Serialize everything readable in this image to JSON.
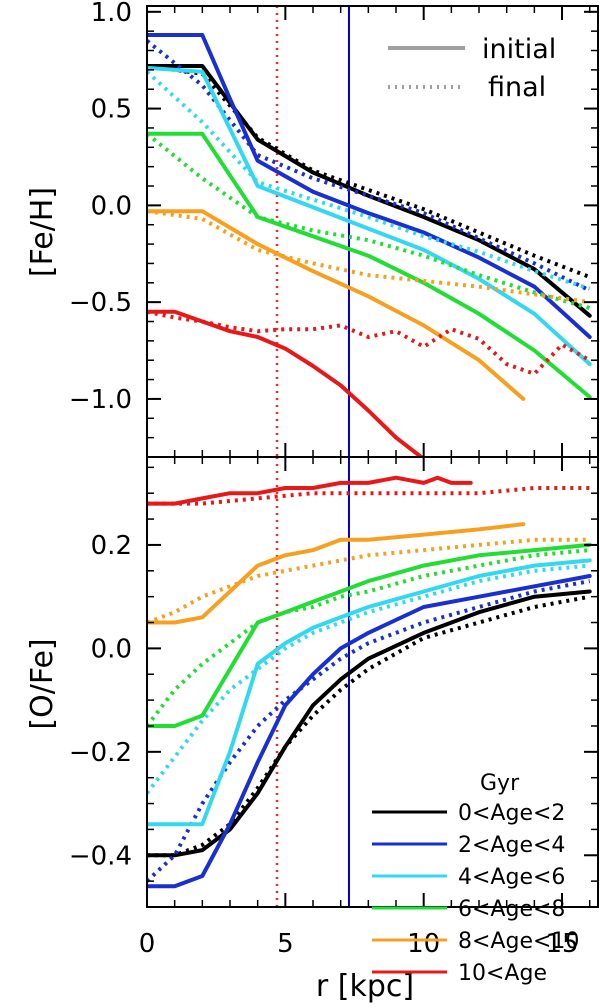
{
  "chart_data": [
    {
      "type": "line",
      "panel": "top",
      "ylabel": "[Fe/H]",
      "xlim": [
        0,
        16.3
      ],
      "ylim": [
        -1.3,
        1.03
      ],
      "yticks": [
        1.0,
        0.5,
        0.0,
        -0.5,
        -1.0
      ],
      "yticklabels": [
        "1.0",
        "0.5",
        "0.0",
        "−0.5",
        "−1.0"
      ],
      "style_legend": [
        {
          "label": "initial",
          "style": "solid"
        },
        {
          "label": "final",
          "style": "dotted"
        }
      ],
      "vlines": [
        {
          "x": 4.7,
          "color": "#ff2020",
          "style": "dotted"
        },
        {
          "x": 7.3,
          "color": "#0000c8",
          "style": "solid"
        }
      ],
      "series": [
        {
          "name": "0<Age<2",
          "color": "#000000",
          "style": "solid",
          "x": [
            0,
            2,
            4,
            6,
            8,
            10,
            12,
            14,
            16
          ],
          "y": [
            0.72,
            0.72,
            0.34,
            0.17,
            0.05,
            -0.06,
            -0.18,
            -0.33,
            -0.57
          ]
        },
        {
          "name": "0<Age<2",
          "color": "#000000",
          "style": "dotted",
          "x": [
            0,
            2,
            4,
            6,
            8,
            10,
            12,
            14,
            16
          ],
          "y": [
            0.72,
            0.68,
            0.35,
            0.18,
            0.08,
            -0.02,
            -0.14,
            -0.26,
            -0.37
          ]
        },
        {
          "name": "2<Age<4",
          "color": "#1a2fd0",
          "style": "solid",
          "x": [
            0,
            2,
            3,
            4,
            6,
            8,
            10,
            12,
            14,
            16
          ],
          "y": [
            0.88,
            0.88,
            0.55,
            0.23,
            0.07,
            -0.04,
            -0.14,
            -0.27,
            -0.42,
            -0.68
          ]
        },
        {
          "name": "2<Age<4",
          "color": "#1a2fd0",
          "style": "dotted",
          "x": [
            0,
            2,
            4,
            6,
            8,
            10,
            12,
            14,
            16
          ],
          "y": [
            0.85,
            0.62,
            0.26,
            0.14,
            0.05,
            -0.04,
            -0.17,
            -0.3,
            -0.44
          ]
        },
        {
          "name": "4<Age<6",
          "color": "#33d8ee",
          "style": "solid",
          "x": [
            0,
            2,
            4,
            6,
            8,
            10,
            12,
            14,
            16
          ],
          "y": [
            0.71,
            0.69,
            0.1,
            -0.01,
            -0.12,
            -0.23,
            -0.38,
            -0.56,
            -0.82
          ]
        },
        {
          "name": "4<Age<6",
          "color": "#33d8ee",
          "style": "dotted",
          "x": [
            0,
            2,
            4,
            6,
            8,
            10,
            12,
            14,
            16
          ],
          "y": [
            0.69,
            0.43,
            0.12,
            0.03,
            -0.06,
            -0.16,
            -0.24,
            -0.34,
            -0.43
          ]
        },
        {
          "name": "6<Age<8",
          "color": "#22dd33",
          "style": "solid",
          "x": [
            0,
            2,
            4,
            6,
            8,
            10,
            12,
            14,
            16
          ],
          "y": [
            0.37,
            0.37,
            -0.06,
            -0.16,
            -0.26,
            -0.4,
            -0.56,
            -0.75,
            -0.99
          ]
        },
        {
          "name": "6<Age<8",
          "color": "#22dd33",
          "style": "dotted",
          "x": [
            0,
            2,
            4,
            6,
            8,
            10,
            12,
            14,
            16
          ],
          "y": [
            0.37,
            0.14,
            -0.06,
            -0.13,
            -0.18,
            -0.26,
            -0.36,
            -0.45,
            -0.53
          ]
        },
        {
          "name": "8<Age<10",
          "color": "#f7a020",
          "style": "solid",
          "x": [
            0,
            2,
            4,
            6,
            8,
            10,
            12,
            13.6
          ],
          "y": [
            -0.03,
            -0.03,
            -0.2,
            -0.34,
            -0.47,
            -0.62,
            -0.8,
            -1.0
          ]
        },
        {
          "name": "8<Age<10",
          "color": "#f7a020",
          "style": "dotted",
          "x": [
            0,
            2,
            4,
            6,
            8,
            10,
            12,
            14,
            16
          ],
          "y": [
            -0.03,
            -0.07,
            -0.23,
            -0.3,
            -0.36,
            -0.39,
            -0.42,
            -0.46,
            -0.5
          ]
        },
        {
          "name": "10<Age",
          "color": "#e81818",
          "style": "solid",
          "x": [
            0,
            1,
            2,
            3,
            4,
            5,
            6,
            7,
            8,
            9,
            10,
            10.2
          ],
          "y": [
            -0.55,
            -0.55,
            -0.6,
            -0.65,
            -0.68,
            -0.74,
            -0.83,
            -0.93,
            -1.06,
            -1.2,
            -1.31,
            -1.31
          ]
        },
        {
          "name": "10<Age",
          "color": "#e81818",
          "style": "dotted",
          "x": [
            0,
            1,
            2,
            3,
            4,
            5,
            6,
            7,
            8,
            9,
            10,
            11,
            12,
            13,
            14,
            15,
            16
          ],
          "y": [
            -0.55,
            -0.58,
            -0.6,
            -0.63,
            -0.65,
            -0.64,
            -0.64,
            -0.62,
            -0.68,
            -0.65,
            -0.73,
            -0.64,
            -0.69,
            -0.82,
            -0.87,
            -0.72,
            -0.8
          ]
        }
      ]
    },
    {
      "type": "line",
      "panel": "bottom",
      "xlabel": "r [kpc]",
      "ylabel": "[O/Fe]",
      "xlim": [
        0,
        16.3
      ],
      "ylim": [
        -0.5,
        0.37
      ],
      "xticks": [
        0,
        5,
        10,
        15
      ],
      "xticklabels": [
        "0",
        "5",
        "10",
        "15"
      ],
      "yticks": [
        0.2,
        0.0,
        -0.2,
        -0.4
      ],
      "yticklabels": [
        "0.2",
        "0.0",
        "−0.2",
        "−0.4"
      ],
      "legend_title": "Gyr",
      "legend_location": "lower-right",
      "vlines": [
        {
          "x": 4.7,
          "color": "#ff2020",
          "style": "dotted"
        },
        {
          "x": 7.3,
          "color": "#0000c8",
          "style": "solid"
        }
      ],
      "series": [
        {
          "name": "0<Age<2",
          "color": "#000000",
          "style": "solid",
          "x": [
            0,
            1,
            2,
            3,
            4,
            5,
            6,
            7,
            8,
            10,
            12,
            14,
            16
          ],
          "y": [
            -0.4,
            -0.4,
            -0.39,
            -0.35,
            -0.28,
            -0.19,
            -0.11,
            -0.06,
            -0.02,
            0.03,
            0.07,
            0.1,
            0.11
          ]
        },
        {
          "name": "0<Age<2",
          "color": "#000000",
          "style": "dotted",
          "x": [
            0,
            1,
            2,
            3,
            4,
            5,
            6,
            7,
            8,
            10,
            12,
            14,
            16
          ],
          "y": [
            -0.4,
            -0.4,
            -0.38,
            -0.34,
            -0.27,
            -0.19,
            -0.13,
            -0.08,
            -0.04,
            0.02,
            0.05,
            0.08,
            0.1
          ]
        },
        {
          "name": "2<Age<4",
          "color": "#1a2fd0",
          "style": "solid",
          "x": [
            0,
            1,
            2,
            3,
            4,
            5,
            6,
            7,
            8,
            10,
            12,
            14,
            16
          ],
          "y": [
            -0.46,
            -0.46,
            -0.44,
            -0.34,
            -0.22,
            -0.11,
            -0.05,
            0.0,
            0.03,
            0.08,
            0.1,
            0.12,
            0.14
          ]
        },
        {
          "name": "2<Age<4",
          "color": "#1a2fd0",
          "style": "dotted",
          "x": [
            0,
            1,
            2,
            3,
            4,
            5,
            6,
            7,
            8,
            10,
            12,
            14,
            16
          ],
          "y": [
            -0.45,
            -0.4,
            -0.3,
            -0.22,
            -0.15,
            -0.1,
            -0.06,
            -0.02,
            0.01,
            0.05,
            0.08,
            0.11,
            0.13
          ]
        },
        {
          "name": "4<Age<6",
          "color": "#33d8ee",
          "style": "solid",
          "x": [
            0,
            1,
            2,
            3,
            4,
            5,
            6,
            7,
            8,
            10,
            12,
            14,
            16
          ],
          "y": [
            -0.34,
            -0.34,
            -0.34,
            -0.2,
            -0.03,
            0.01,
            0.04,
            0.06,
            0.08,
            0.11,
            0.14,
            0.16,
            0.17
          ]
        },
        {
          "name": "4<Age<6",
          "color": "#33d8ee",
          "style": "dotted",
          "x": [
            0,
            1,
            2,
            3,
            4,
            5,
            6,
            7,
            8,
            10,
            12,
            14,
            16
          ],
          "y": [
            -0.28,
            -0.21,
            -0.14,
            -0.08,
            -0.04,
            0.0,
            0.03,
            0.05,
            0.07,
            0.1,
            0.13,
            0.15,
            0.16
          ]
        },
        {
          "name": "6<Age<8",
          "color": "#22dd33",
          "style": "solid",
          "x": [
            0,
            1,
            2,
            3,
            4,
            5,
            6,
            7,
            8,
            10,
            12,
            14,
            16
          ],
          "y": [
            -0.15,
            -0.15,
            -0.13,
            -0.04,
            0.05,
            0.07,
            0.09,
            0.11,
            0.13,
            0.16,
            0.18,
            0.19,
            0.2
          ]
        },
        {
          "name": "6<Age<8",
          "color": "#22dd33",
          "style": "dotted",
          "x": [
            0,
            1,
            2,
            3,
            4,
            5,
            6,
            7,
            8,
            10,
            12,
            14,
            16
          ],
          "y": [
            -0.15,
            -0.08,
            -0.03,
            0.01,
            0.05,
            0.07,
            0.08,
            0.1,
            0.11,
            0.14,
            0.16,
            0.18,
            0.19
          ]
        },
        {
          "name": "8<Age<10",
          "color": "#f7a020",
          "style": "solid",
          "x": [
            0,
            1,
            2,
            3,
            4,
            5,
            6,
            7,
            8,
            10,
            12,
            13.6
          ],
          "y": [
            0.05,
            0.05,
            0.06,
            0.11,
            0.16,
            0.18,
            0.19,
            0.21,
            0.21,
            0.22,
            0.23,
            0.24
          ]
        },
        {
          "name": "8<Age<10",
          "color": "#f7a020",
          "style": "dotted",
          "x": [
            0,
            1,
            2,
            3,
            4,
            5,
            6,
            7,
            8,
            10,
            12,
            14,
            16
          ],
          "y": [
            0.05,
            0.07,
            0.1,
            0.12,
            0.14,
            0.15,
            0.16,
            0.17,
            0.18,
            0.19,
            0.2,
            0.21,
            0.21
          ]
        },
        {
          "name": "10<Age",
          "color": "#e81818",
          "style": "solid",
          "x": [
            0,
            1,
            2,
            3,
            4,
            5,
            6,
            7,
            8,
            9,
            10,
            10.5,
            11,
            11.7
          ],
          "y": [
            0.28,
            0.28,
            0.29,
            0.3,
            0.3,
            0.31,
            0.31,
            0.32,
            0.32,
            0.33,
            0.32,
            0.33,
            0.32,
            0.32
          ]
        },
        {
          "name": "10<Age",
          "color": "#e81818",
          "style": "dotted",
          "x": [
            0,
            2,
            4,
            6,
            8,
            10,
            12,
            14,
            16
          ],
          "y": [
            0.28,
            0.28,
            0.29,
            0.3,
            0.3,
            0.3,
            0.3,
            0.31,
            0.31
          ]
        }
      ]
    }
  ],
  "age_legend": [
    {
      "label": "0<Age<2",
      "color": "#000000"
    },
    {
      "label": "2<Age<4",
      "color": "#1a2fd0"
    },
    {
      "label": "4<Age<6",
      "color": "#33d8ee"
    },
    {
      "label": "6<Age<8",
      "color": "#22dd33"
    },
    {
      "label": "8<Age<10",
      "color": "#f7a020"
    },
    {
      "label": "10<Age",
      "color": "#e81818"
    }
  ]
}
